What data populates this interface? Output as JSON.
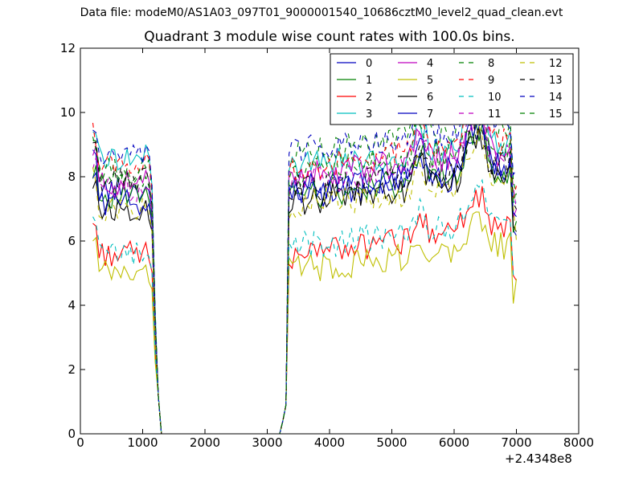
{
  "suptitle": "Data file: modeM0/AS1A03_097T01_9000001540_10686cztM0_level2_quad_clean.evt",
  "chart_data": {
    "type": "line",
    "title": "Quadrant 3 module wise count rates with 100.0s bins.",
    "xlabel": "",
    "ylabel": "",
    "x_offset_label": "+2.4348e8",
    "xlim": [
      0,
      8000
    ],
    "ylim": [
      0,
      12
    ],
    "xticks": [
      0,
      1000,
      2000,
      3000,
      4000,
      5000,
      6000,
      7000,
      8000
    ],
    "yticks": [
      0,
      2,
      4,
      6,
      8,
      10,
      12
    ],
    "grid": false,
    "legend": {
      "placement": "top-right",
      "columns": 4
    },
    "x_gap": [
      1300,
      3200
    ],
    "seg1_x": [
      200,
      250,
      300,
      350,
      400,
      450,
      500,
      550,
      600,
      650,
      700,
      750,
      800,
      850,
      900,
      950,
      1000,
      1050,
      1100,
      1150,
      1200,
      1250,
      1300
    ],
    "seg2_x": [
      3200,
      3250,
      3300,
      3350,
      3400,
      3450,
      3500,
      3550,
      3600,
      3650,
      3700,
      3750,
      3800,
      3850,
      3900,
      3950,
      4000,
      4050,
      4100,
      4150,
      4200,
      4250,
      4300,
      4350,
      4400,
      4450,
      4500,
      4550,
      4600,
      4650,
      4700,
      4750,
      4800,
      4850,
      4900,
      4950,
      5000,
      5050,
      5100,
      5150,
      5200,
      5250,
      5300,
      5350,
      5400,
      5450,
      5500,
      5550,
      5600,
      5650,
      5700,
      5750,
      5800,
      5850,
      5900,
      5950,
      6000,
      6050,
      6100,
      6150,
      6200,
      6250,
      6300,
      6350,
      6400,
      6450,
      6500,
      6550,
      6600,
      6650,
      6700,
      6750,
      6800,
      6850,
      6900,
      6950,
      7000
    ],
    "series": [
      {
        "name": "0",
        "color": "#0000bf",
        "dash": "solid",
        "level1": 7.6,
        "level2": 7.4
      },
      {
        "name": "1",
        "color": "#008000",
        "dash": "solid",
        "level1": 7.4,
        "level2": 7.4
      },
      {
        "name": "2",
        "color": "#ff0000",
        "dash": "solid",
        "level1": 5.6,
        "level2": 5.6
      },
      {
        "name": "3",
        "color": "#00bfbf",
        "dash": "solid",
        "level1": 8.6,
        "level2": 8.3
      },
      {
        "name": "4",
        "color": "#bf00bf",
        "dash": "solid",
        "level1": 7.8,
        "level2": 8.0
      },
      {
        "name": "5",
        "color": "#bfbf00",
        "dash": "solid",
        "level1": 5.0,
        "level2": 5.1
      },
      {
        "name": "6",
        "color": "#000000",
        "dash": "solid",
        "level1": 7.0,
        "level2": 7.2
      },
      {
        "name": "7",
        "color": "#0000bf",
        "dash": "solid",
        "level1": 7.2,
        "level2": 7.6
      },
      {
        "name": "8",
        "color": "#008000",
        "dash": "dashed",
        "level1": 8.2,
        "level2": 8.7
      },
      {
        "name": "9",
        "color": "#ff0000",
        "dash": "dashed",
        "level1": 8.4,
        "level2": 8.3
      },
      {
        "name": "10",
        "color": "#00bfbf",
        "dash": "dashed",
        "level1": 5.6,
        "level2": 5.8
      },
      {
        "name": "11",
        "color": "#bf00bf",
        "dash": "dashed",
        "level1": 7.6,
        "level2": 7.8
      },
      {
        "name": "12",
        "color": "#bfbf00",
        "dash": "dashed",
        "level1": 7.0,
        "level2": 7.1
      },
      {
        "name": "13",
        "color": "#000000",
        "dash": "dashed",
        "level1": 7.9,
        "level2": 7.6
      },
      {
        "name": "14",
        "color": "#0000bf",
        "dash": "dashed",
        "level1": 8.6,
        "level2": 8.8
      },
      {
        "name": "15",
        "color": "#008000",
        "dash": "dashed",
        "level1": 8.0,
        "level2": 8.1
      }
    ]
  }
}
